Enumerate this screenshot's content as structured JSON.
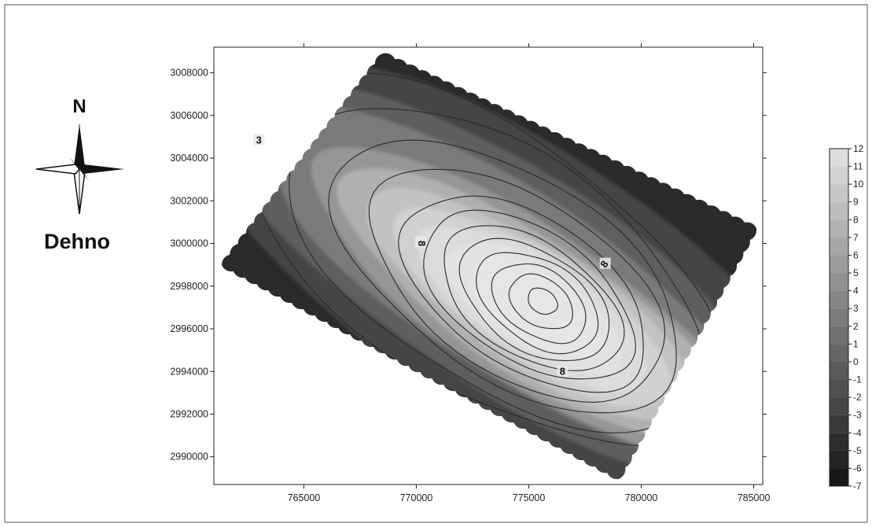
{
  "figure": {
    "site_name": "Dehno",
    "north_label": "N"
  },
  "chart_data": {
    "type": "heatmap",
    "subtype": "contour",
    "x_ticks": [
      765000,
      770000,
      775000,
      780000,
      785000
    ],
    "y_ticks": [
      2990000,
      2992000,
      2994000,
      2996000,
      2998000,
      3000000,
      3002000,
      3004000,
      3006000,
      3008000
    ],
    "xlim": [
      761000,
      785400
    ],
    "ylim": [
      2988700,
      3009200
    ],
    "grid": false,
    "colorscale": "grayscale, black = low, white = high",
    "colorbar_levels": [
      12,
      11,
      10,
      9,
      8,
      7,
      6,
      5,
      4,
      3,
      2,
      1,
      0,
      -1,
      -2,
      -3,
      -4,
      -5,
      -6,
      -7
    ],
    "colorbar_position": "right",
    "contour_labels": [
      {
        "text": "8",
        "x": 770200,
        "y": 3000000
      },
      {
        "text": "8",
        "x": 778400,
        "y": 2999000
      },
      {
        "text": "8",
        "x": 776500,
        "y": 2993950
      },
      {
        "text": "3",
        "x": 763000,
        "y": 3004800
      }
    ],
    "peak": {
      "x": 775300,
      "y": 2997300,
      "value": 12
    }
  }
}
